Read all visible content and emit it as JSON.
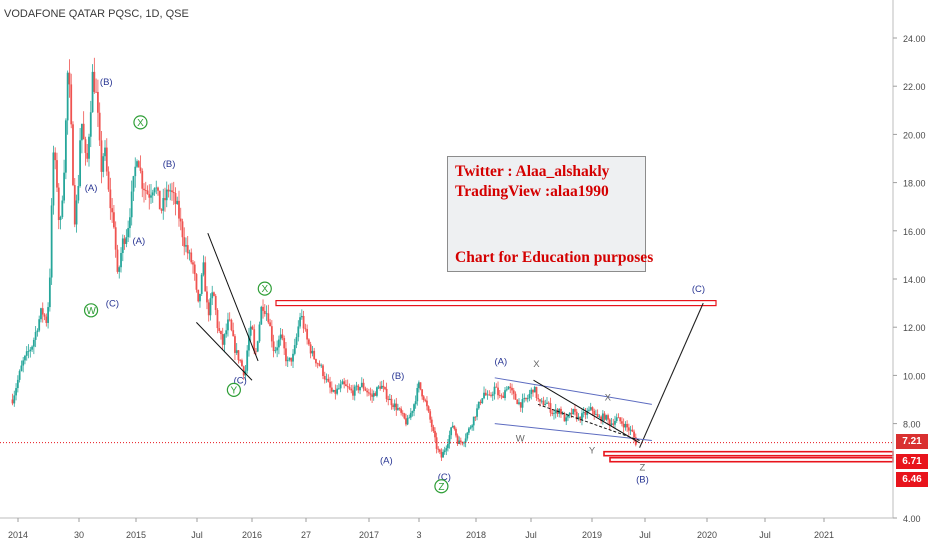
{
  "header": {
    "symbol_title": "VODAFONE QATAR PQSC, 1D, QSE"
  },
  "note": {
    "twitter": "Twitter : Alaa_alshakly",
    "tradingview": "TradingView :alaa1990",
    "purpose": "Chart for Education purposes"
  },
  "price_tags": {
    "current": "7.21",
    "level_1": "6.71",
    "level_2": "6.46"
  },
  "colors": {
    "candle_up": "#26a69a",
    "candle_down": "#ef5350",
    "wave_label": "#283593",
    "green_label": "#2e9e36",
    "grey_label": "#666666",
    "annotation_red": "#e8141c",
    "channel_blue": "#5c6bc0"
  },
  "chart_data": {
    "type": "candlestick",
    "title": "VODAFONE QATAR PQSC, 1D, QSE",
    "y_ticks": [
      "24.00",
      "22.00",
      "20.00",
      "18.00",
      "16.00",
      "14.00",
      "12.00",
      "10.00",
      "8.00",
      "4.00"
    ],
    "y_range": [
      4.0,
      25.0
    ],
    "x_ticks": [
      "2014",
      "30",
      "2015",
      "Jul",
      "2016",
      "27",
      "2017",
      "3",
      "2018",
      "Jul",
      "2019",
      "Jul",
      "2020",
      "Jul",
      "2021"
    ],
    "price_path": [
      [
        "2013-12-15",
        9.0
      ],
      [
        "2014-01-15",
        10.5
      ],
      [
        "2014-02-15",
        11.3
      ],
      [
        "2014-03-01",
        12.0
      ],
      [
        "2014-03-15",
        12.7
      ],
      [
        "2014-04-01",
        12.2
      ],
      [
        "2014-04-10",
        14.3
      ],
      [
        "2014-04-20",
        19.3
      ],
      [
        "2014-05-01",
        18.1
      ],
      [
        "2014-05-10",
        15.8
      ],
      [
        "2014-05-25",
        19.0
      ],
      [
        "2014-06-05",
        23.0
      ],
      [
        "2014-06-15",
        20.0
      ],
      [
        "2014-06-25",
        16.5
      ],
      [
        "2014-07-05",
        17.5
      ],
      [
        "2014-07-15",
        20.8
      ],
      [
        "2014-08-01",
        18.5
      ],
      [
        "2014-08-20",
        22.5
      ],
      [
        "2014-09-01",
        21.5
      ],
      [
        "2014-09-15",
        18.5
      ],
      [
        "2014-09-25",
        19.5
      ],
      [
        "2014-10-10",
        17.3
      ],
      [
        "2014-10-25",
        16.3
      ],
      [
        "2014-11-05",
        14.0
      ],
      [
        "2014-11-20",
        15.5
      ],
      [
        "2014-12-05",
        16.0
      ],
      [
        "2014-12-20",
        17.5
      ],
      [
        "2015-01-05",
        19.3
      ],
      [
        "2015-01-20",
        18.0
      ],
      [
        "2015-02-10",
        17.5
      ],
      [
        "2015-03-01",
        18.0
      ],
      [
        "2015-03-20",
        16.8
      ],
      [
        "2015-04-15",
        17.8
      ],
      [
        "2015-05-10",
        17.0
      ],
      [
        "2015-06-01",
        15.6
      ],
      [
        "2015-06-15",
        15.0
      ],
      [
        "2015-07-01",
        14.5
      ],
      [
        "2015-07-15",
        12.8
      ],
      [
        "2015-08-01",
        14.5
      ],
      [
        "2015-08-15",
        12.5
      ],
      [
        "2015-09-01",
        13.5
      ],
      [
        "2015-09-15",
        12.0
      ],
      [
        "2015-10-01",
        11.3
      ],
      [
        "2015-10-20",
        12.3
      ],
      [
        "2015-11-10",
        11.0
      ],
      [
        "2015-11-25",
        10.6
      ],
      [
        "2015-12-10",
        10.0
      ],
      [
        "2015-12-20",
        11.5
      ],
      [
        "2016-01-01",
        12.0
      ],
      [
        "2016-01-10",
        10.6
      ],
      [
        "2016-02-01",
        13.0
      ],
      [
        "2016-02-20",
        12.5
      ],
      [
        "2016-03-10",
        11.0
      ],
      [
        "2016-04-01",
        11.6
      ],
      [
        "2016-04-20",
        10.5
      ],
      [
        "2016-05-10",
        10.8
      ],
      [
        "2016-06-01",
        12.6
      ],
      [
        "2016-06-20",
        11.5
      ],
      [
        "2016-07-10",
        10.8
      ],
      [
        "2016-08-01",
        10.4
      ],
      [
        "2016-08-20",
        9.8
      ],
      [
        "2016-09-10",
        9.2
      ],
      [
        "2016-10-10",
        9.6
      ],
      [
        "2016-11-10",
        9.3
      ],
      [
        "2016-12-10",
        9.6
      ],
      [
        "2017-01-10",
        9.1
      ],
      [
        "2017-02-10",
        9.6
      ],
      [
        "2017-03-10",
        9.0
      ],
      [
        "2017-04-10",
        8.6
      ],
      [
        "2017-05-10",
        8.0
      ],
      [
        "2017-06-01",
        8.7
      ],
      [
        "2017-06-20",
        9.6
      ],
      [
        "2017-07-10",
        9.0
      ],
      [
        "2017-08-01",
        8.0
      ],
      [
        "2017-08-20",
        7.0
      ],
      [
        "2017-09-05",
        6.6
      ],
      [
        "2017-09-25",
        7.2
      ],
      [
        "2017-10-15",
        8.0
      ],
      [
        "2017-11-01",
        7.2
      ],
      [
        "2017-11-20",
        7.3
      ],
      [
        "2017-12-10",
        7.8
      ],
      [
        "2018-01-05",
        8.6
      ],
      [
        "2018-01-25",
        9.3
      ],
      [
        "2018-02-10",
        9.0
      ],
      [
        "2018-03-01",
        9.5
      ],
      [
        "2018-03-20",
        9.0
      ],
      [
        "2018-04-10",
        9.6
      ],
      [
        "2018-05-01",
        9.1
      ],
      [
        "2018-05-20",
        8.8
      ],
      [
        "2018-06-10",
        9.0
      ],
      [
        "2018-07-01",
        9.5
      ],
      [
        "2018-07-20",
        8.8
      ],
      [
        "2018-08-10",
        8.9
      ],
      [
        "2018-09-01",
        8.4
      ],
      [
        "2018-09-20",
        8.6
      ],
      [
        "2018-10-10",
        8.1
      ],
      [
        "2018-11-01",
        8.5
      ],
      [
        "2018-11-20",
        8.2
      ],
      [
        "2018-12-10",
        8.4
      ],
      [
        "2019-01-01",
        8.6
      ],
      [
        "2019-01-20",
        8.2
      ],
      [
        "2019-02-10",
        8.3
      ],
      [
        "2019-03-01",
        8.0
      ],
      [
        "2019-03-20",
        8.2
      ],
      [
        "2019-04-10",
        8.0
      ],
      [
        "2019-04-25",
        7.8
      ],
      [
        "2019-05-10",
        7.6
      ],
      [
        "2019-05-20",
        7.21
      ]
    ],
    "projection": [
      [
        "2019-06-01",
        7.0
      ],
      [
        "2019-12-20",
        13.0
      ]
    ],
    "horizontal_levels": {
      "target_zone": 13.0,
      "current": 7.21,
      "support_1": 6.71,
      "support_2": 6.46
    },
    "wave_labels": [
      {
        "text": "(B)",
        "date": "2014-10-01",
        "price": 22.2,
        "style": "wave"
      },
      {
        "text": "X",
        "date": "2015-01-15",
        "price": 20.5,
        "style": "circle-green"
      },
      {
        "text": "(B)",
        "date": "2015-04-15",
        "price": 18.8,
        "style": "wave"
      },
      {
        "text": "(A)",
        "date": "2014-08-15",
        "price": 17.8,
        "style": "wave"
      },
      {
        "text": "(A)",
        "date": "2015-01-10",
        "price": 15.6,
        "style": "wave"
      },
      {
        "text": "W",
        "date": "2014-08-15",
        "price": 12.7,
        "style": "circle-green"
      },
      {
        "text": "(C)",
        "date": "2014-10-20",
        "price": 13.0,
        "style": "wave"
      },
      {
        "text": "X",
        "date": "2016-02-10",
        "price": 13.6,
        "style": "circle-green"
      },
      {
        "text": "(C)",
        "date": "2015-11-25",
        "price": 9.8,
        "style": "wave"
      },
      {
        "text": "Y",
        "date": "2015-11-05",
        "price": 9.4,
        "style": "circle-green"
      },
      {
        "text": "(B)",
        "date": "2017-04-10",
        "price": 10.0,
        "style": "wave"
      },
      {
        "text": "(A)",
        "date": "2017-03-01",
        "price": 6.5,
        "style": "wave"
      },
      {
        "text": "(C)",
        "date": "2017-09-15",
        "price": 5.8,
        "style": "wave"
      },
      {
        "text": "Z",
        "date": "2017-09-05",
        "price": 5.4,
        "style": "circle-green"
      },
      {
        "text": "(A)",
        "date": "2018-03-20",
        "price": 10.6,
        "style": "wave"
      },
      {
        "text": "X",
        "date": "2018-07-10",
        "price": 10.5,
        "style": "grey"
      },
      {
        "text": "W",
        "date": "2018-05-20",
        "price": 7.4,
        "style": "grey"
      },
      {
        "text": "X",
        "date": "2019-02-20",
        "price": 9.1,
        "style": "grey"
      },
      {
        "text": "Y",
        "date": "2019-01-01",
        "price": 6.9,
        "style": "grey"
      },
      {
        "text": "Z",
        "date": "2019-06-10",
        "price": 6.2,
        "style": "grey"
      },
      {
        "text": "(B)",
        "date": "2019-06-10",
        "price": 5.7,
        "style": "wave"
      },
      {
        "text": "(C)",
        "date": "2019-12-05",
        "price": 13.6,
        "style": "wave"
      }
    ]
  }
}
